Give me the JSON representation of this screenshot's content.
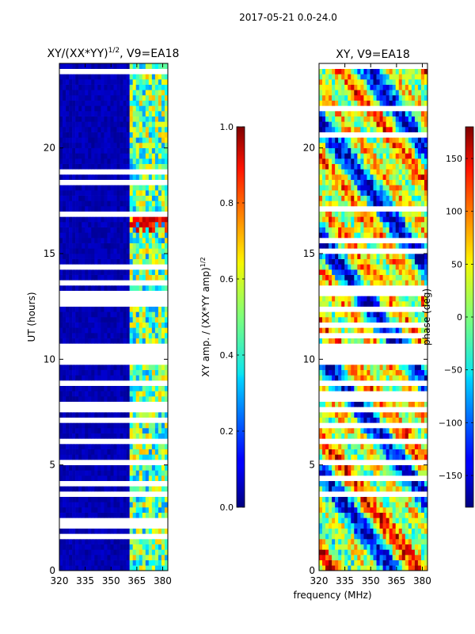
{
  "figure_title": "2017-05-21 0.0-24.0",
  "shared_xlabel": "frequency (MHz)",
  "chart_data": [
    {
      "type": "heatmap",
      "title_main": "XY/(XX*YY)",
      "title_exp": "1/2",
      "title_suffix": ", V9=EA18",
      "ylabel": "UT (hours)",
      "xlim": [
        320,
        383
      ],
      "ylim": [
        0,
        24
      ],
      "xticks": [
        320,
        335,
        350,
        365,
        380
      ],
      "yticks": [
        0,
        5,
        10,
        15,
        20
      ],
      "gaps_hours": [
        [
          10.7,
          9.65
        ],
        [
          6.2,
          6.05
        ],
        [
          1.75,
          1.6
        ]
      ],
      "colorbar": {
        "label_main": "XY amp. / (XX*YY amp)",
        "label_exp": "1/2",
        "range": [
          0.0,
          1.0
        ],
        "ticks": [
          0.0,
          0.2,
          0.4,
          0.6,
          0.8,
          1.0
        ],
        "tick_labels": [
          "0.0",
          "0.2",
          "0.4",
          "0.6",
          "0.8",
          "1.0"
        ]
      }
    },
    {
      "type": "heatmap",
      "title": "XY, V9=EA18",
      "xlim": [
        320,
        383
      ],
      "ylim": [
        0,
        24
      ],
      "xticks": [
        320,
        335,
        350,
        365,
        380
      ],
      "yticks": [
        0,
        5,
        10,
        15,
        20
      ],
      "gaps_hours": [
        [
          10.7,
          9.65
        ],
        [
          6.2,
          6.05
        ]
      ],
      "colorbar": {
        "label": "phase (deg)",
        "range": [
          -180,
          180
        ],
        "ticks": [
          150,
          100,
          50,
          0,
          -50,
          -100,
          -150
        ],
        "tick_labels": [
          "150",
          "100",
          "50",
          "0",
          "−50",
          "−100",
          "−150"
        ]
      }
    }
  ]
}
